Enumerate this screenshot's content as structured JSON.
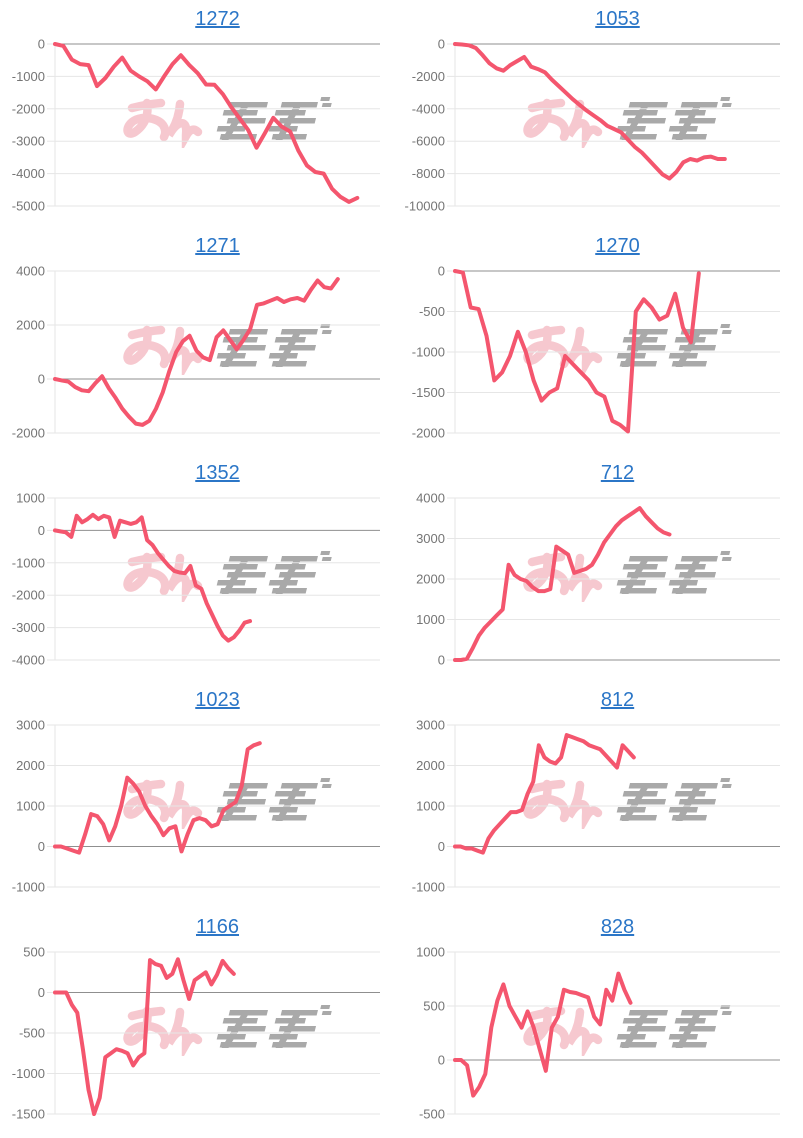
{
  "page": {
    "background": "#ffffff",
    "description": "grid of 10 machine profit line charts"
  },
  "style": {
    "line_color": "#f4566e",
    "grid_color": "#e6e6e6",
    "zero_line_color": "#8f8f8f",
    "tick_label_color": "#757575",
    "title_link_color": "#2b76c7",
    "watermark_pink": "#ef93a0",
    "watermark_gray": "#9b9b9b"
  },
  "watermark": {
    "text": "みんレポ",
    "icon": "minrepo-logo-watermark"
  },
  "chart_data": [
    {
      "type": "line",
      "title": "1272",
      "ylim": [
        -5000,
        0
      ],
      "yticks": [
        0,
        -1000,
        -2000,
        -3000,
        -4000,
        -5000
      ],
      "grid": true,
      "legend": "none",
      "x_fill_fraction": 0.93,
      "values": [
        0,
        -60,
        -480,
        -620,
        -650,
        -1300,
        -1050,
        -700,
        -420,
        -820,
        -1000,
        -1150,
        -1400,
        -1000,
        -620,
        -350,
        -650,
        -900,
        -1250,
        -1260,
        -1550,
        -1950,
        -2300,
        -2650,
        -3200,
        -2750,
        -2280,
        -2550,
        -2700,
        -3300,
        -3750,
        -3950,
        -4000,
        -4470,
        -4720,
        -4875,
        -4750
      ]
    },
    {
      "type": "line",
      "title": "1053",
      "ylim": [
        -10000,
        0
      ],
      "yticks": [
        0,
        -2000,
        -4000,
        -6000,
        -8000,
        -10000
      ],
      "grid": true,
      "legend": "none",
      "x_fill_fraction": 0.83,
      "values": [
        0,
        -30,
        -80,
        -250,
        -700,
        -1200,
        -1500,
        -1650,
        -1300,
        -1050,
        -800,
        -1400,
        -1550,
        -1750,
        -2200,
        -2600,
        -3000,
        -3400,
        -3750,
        -4100,
        -4400,
        -4700,
        -5050,
        -5250,
        -5450,
        -5900,
        -6350,
        -6700,
        -7150,
        -7600,
        -8050,
        -8300,
        -7900,
        -7300,
        -7100,
        -7200,
        -7000,
        -6950,
        -7100,
        -7100
      ]
    },
    {
      "type": "line",
      "title": "1271",
      "ylim": [
        -2000,
        4000
      ],
      "yticks": [
        4000,
        2000,
        0,
        -2000
      ],
      "grid": true,
      "legend": "none",
      "x_fill_fraction": 0.87,
      "values": [
        0,
        -50,
        -100,
        -300,
        -420,
        -450,
        -150,
        100,
        -350,
        -700,
        -1100,
        -1400,
        -1650,
        -1700,
        -1550,
        -1100,
        -500,
        300,
        1000,
        1400,
        1600,
        1050,
        800,
        700,
        1550,
        1800,
        1450,
        1100,
        1450,
        1850,
        2750,
        2800,
        2900,
        3000,
        2850,
        2950,
        3000,
        2900,
        3300,
        3650,
        3400,
        3350,
        3700
      ]
    },
    {
      "type": "line",
      "title": "1270",
      "ylim": [
        -2000,
        0
      ],
      "yticks": [
        0,
        -500,
        -1000,
        -1500,
        -2000
      ],
      "grid": true,
      "legend": "none",
      "x_fill_fraction": 0.75,
      "values": [
        0,
        -20,
        -450,
        -470,
        -800,
        -1350,
        -1250,
        -1050,
        -750,
        -1000,
        -1350,
        -1600,
        -1500,
        -1450,
        -1050,
        -1150,
        -1250,
        -1350,
        -1500,
        -1550,
        -1850,
        -1900,
        -1980,
        -500,
        -350,
        -450,
        -600,
        -550,
        -280,
        -700,
        -880,
        -30
      ]
    },
    {
      "type": "line",
      "title": "1352",
      "ylim": [
        -4000,
        1000
      ],
      "yticks": [
        1000,
        0,
        -1000,
        -2000,
        -3000,
        -4000
      ],
      "grid": true,
      "legend": "none",
      "x_fill_fraction": 0.6,
      "values": [
        0,
        -30,
        -60,
        -200,
        450,
        250,
        350,
        480,
        350,
        450,
        400,
        -200,
        300,
        250,
        200,
        250,
        400,
        -300,
        -450,
        -700,
        -900,
        -1100,
        -1250,
        -1300,
        -1320,
        -1100,
        -1700,
        -1800,
        -2250,
        -2600,
        -2950,
        -3250,
        -3400,
        -3300,
        -3100,
        -2850,
        -2800
      ]
    },
    {
      "type": "line",
      "title": "712",
      "ylim": [
        0,
        4000
      ],
      "yticks": [
        4000,
        3000,
        2000,
        1000,
        0
      ],
      "grid": true,
      "legend": "none",
      "x_fill_fraction": 0.66,
      "values": [
        0,
        0,
        30,
        300,
        600,
        800,
        950,
        1100,
        1250,
        2350,
        2100,
        2000,
        1950,
        1800,
        1700,
        1700,
        1750,
        2800,
        2700,
        2600,
        2150,
        2200,
        2250,
        2350,
        2600,
        2900,
        3100,
        3300,
        3450,
        3550,
        3650,
        3750,
        3550,
        3400,
        3250,
        3150,
        3100
      ]
    },
    {
      "type": "line",
      "title": "1023",
      "ylim": [
        -1000,
        3000
      ],
      "yticks": [
        3000,
        2000,
        1000,
        0,
        -1000
      ],
      "grid": true,
      "legend": "none",
      "x_fill_fraction": 0.63,
      "values": [
        0,
        0,
        -50,
        -100,
        -150,
        300,
        800,
        750,
        550,
        150,
        500,
        1000,
        1700,
        1550,
        1350,
        1000,
        750,
        550,
        280,
        450,
        500,
        -120,
        300,
        650,
        700,
        650,
        500,
        550,
        900,
        1000,
        1100,
        1500,
        2400,
        2500,
        2550
      ]
    },
    {
      "type": "line",
      "title": "812",
      "ylim": [
        -1000,
        3000
      ],
      "yticks": [
        3000,
        2000,
        1000,
        0,
        -1000
      ],
      "grid": true,
      "legend": "none",
      "x_fill_fraction": 0.55,
      "values": [
        0,
        0,
        -50,
        -50,
        -100,
        -150,
        200,
        400,
        550,
        700,
        850,
        850,
        900,
        1300,
        1600,
        2500,
        2200,
        2100,
        2050,
        2200,
        2750,
        2700,
        2650,
        2600,
        2500,
        2450,
        2400,
        2250,
        2100,
        1950,
        2500,
        2350,
        2200
      ]
    },
    {
      "type": "line",
      "title": "1166",
      "ylim": [
        -1500,
        500
      ],
      "yticks": [
        500,
        0,
        -500,
        -1000,
        -1500
      ],
      "grid": true,
      "legend": "none",
      "x_fill_fraction": 0.55,
      "values": [
        0,
        0,
        0,
        -150,
        -250,
        -700,
        -1200,
        -1500,
        -1300,
        -800,
        -750,
        -700,
        -720,
        -750,
        -900,
        -800,
        -750,
        400,
        350,
        330,
        180,
        230,
        410,
        150,
        -80,
        150,
        200,
        250,
        100,
        220,
        390,
        300,
        230
      ]
    },
    {
      "type": "line",
      "title": "828",
      "ylim": [
        -500,
        1000
      ],
      "yticks": [
        1000,
        500,
        0,
        -500
      ],
      "grid": true,
      "legend": "none",
      "x_fill_fraction": 0.54,
      "values": [
        0,
        0,
        -50,
        -330,
        -250,
        -130,
        300,
        550,
        700,
        500,
        400,
        300,
        450,
        300,
        100,
        -100,
        300,
        400,
        650,
        630,
        620,
        600,
        580,
        400,
        330,
        650,
        550,
        800,
        650,
        530
      ]
    }
  ]
}
